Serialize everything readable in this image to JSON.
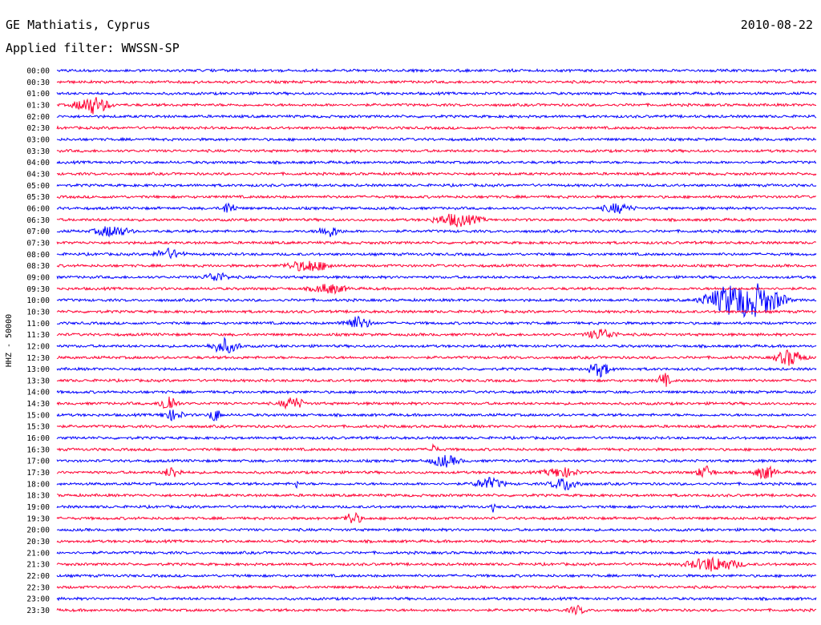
{
  "header": {
    "station": "GE Mathiatis, Cyprus",
    "date": "2010-08-22",
    "filter": "Applied filter: WWSSN-SP"
  },
  "chart_data": {
    "type": "line",
    "ylabel": "HHZ - 50000",
    "colors": [
      "#0000ff",
      "#ff0033"
    ],
    "tick_labels": [
      "00:00",
      "00:30",
      "01:00",
      "01:30",
      "02:00",
      "02:30",
      "03:00",
      "03:30",
      "04:00",
      "04:30",
      "05:00",
      "05:30",
      "06:00",
      "06:30",
      "07:00",
      "07:30",
      "08:00",
      "08:30",
      "09:00",
      "09:30",
      "10:00",
      "10:30",
      "11:00",
      "11:30",
      "12:00",
      "12:30",
      "13:00",
      "13:30",
      "14:00",
      "14:30",
      "15:00",
      "15:30",
      "16:00",
      "16:30",
      "17:00",
      "17:30",
      "18:00",
      "18:30",
      "19:00",
      "19:30",
      "20:00",
      "20:30",
      "21:00",
      "21:30",
      "22:00",
      "22:30",
      "23:00",
      "23:30"
    ]
  }
}
